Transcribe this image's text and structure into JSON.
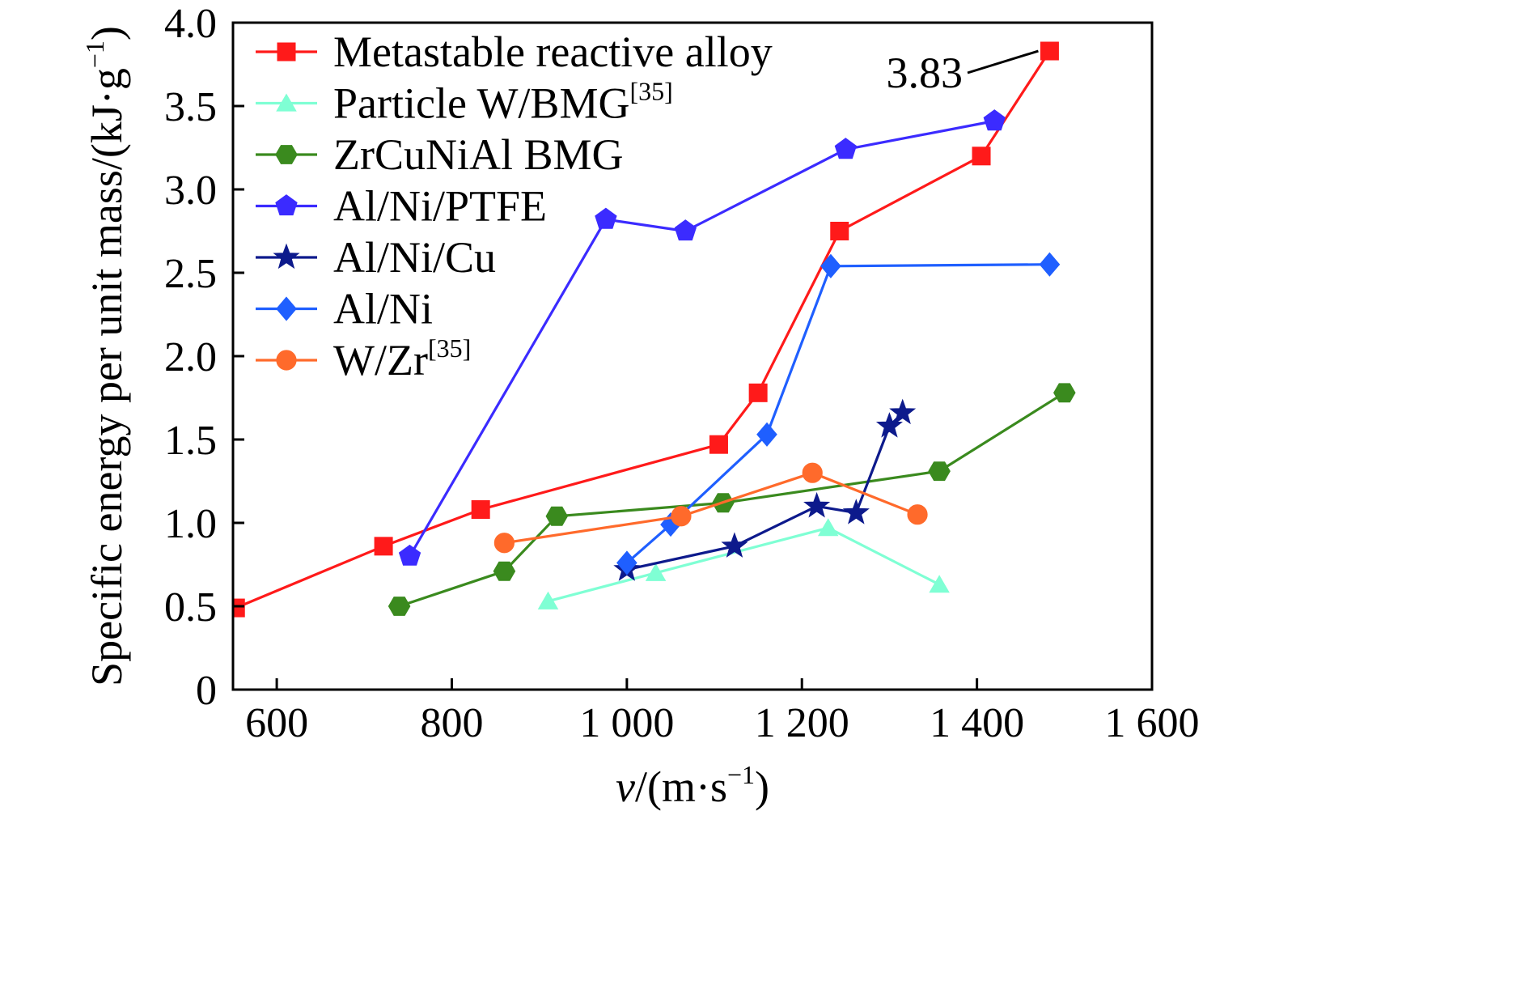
{
  "chart_data": {
    "type": "line",
    "xlabel": "v/(m·s−1)",
    "xlabel_parts": {
      "var": "v",
      "unit_open": "/(m·s",
      "unit_exp": "−1",
      "unit_close": ")"
    },
    "ylabel": "Specific energy per unit mass/(kJ·g−1)",
    "ylabel_parts": {
      "main": "Specific energy per unit mass/(kJ·g",
      "exp": "−1",
      "close": ")"
    },
    "xlim": [
      550,
      1600
    ],
    "ylim": [
      0,
      4.0
    ],
    "x_ticks": [
      {
        "value": 600,
        "label": "600"
      },
      {
        "value": 800,
        "label": "800"
      },
      {
        "value": 1000,
        "label": "1 000"
      },
      {
        "value": 1200,
        "label": "1 200"
      },
      {
        "value": 1400,
        "label": "1 400"
      },
      {
        "value": 1600,
        "label": "1 600"
      }
    ],
    "y_ticks": [
      {
        "value": 0,
        "label": "0"
      },
      {
        "value": 0.5,
        "label": "0.5"
      },
      {
        "value": 1.0,
        "label": "1.0"
      },
      {
        "value": 1.5,
        "label": "1.5"
      },
      {
        "value": 2.0,
        "label": "2.0"
      },
      {
        "value": 2.5,
        "label": "2.5"
      },
      {
        "value": 3.0,
        "label": "3.0"
      },
      {
        "value": 3.5,
        "label": "3.5"
      },
      {
        "value": 4.0,
        "label": "4.0"
      }
    ],
    "grid": false,
    "legend_position": "top-left",
    "annotation": {
      "text": "3.83",
      "x": 1483,
      "y": 3.83
    },
    "series": [
      {
        "name": "Metastable reactive alloy",
        "name_main": "Metastable reactive alloy",
        "name_sup": "",
        "color": "#ff1a1a",
        "marker": "square",
        "x": [
          553,
          722,
          833,
          1105,
          1150,
          1243,
          1405,
          1483
        ],
        "y": [
          0.49,
          0.86,
          1.08,
          1.47,
          1.78,
          2.75,
          3.2,
          3.83
        ]
      },
      {
        "name": "Particle W/BMG[35]",
        "name_main": "Particle W/BMG",
        "name_sup": "[35]",
        "color": "#7fffd4",
        "marker": "triangle",
        "x": [
          910,
          1033,
          1230,
          1357
        ],
        "y": [
          0.53,
          0.7,
          0.97,
          0.63
        ]
      },
      {
        "name": "ZrCuNiAl BMG",
        "name_main": "ZrCuNiAl BMG",
        "name_sup": "",
        "color": "#3a8a1e",
        "marker": "hexagon",
        "x": [
          740,
          860,
          920,
          1110,
          1357,
          1500
        ],
        "y": [
          0.5,
          0.71,
          1.04,
          1.12,
          1.31,
          1.78
        ]
      },
      {
        "name": "Al/Ni/PTFE",
        "name_main": "Al/Ni/PTFE",
        "name_sup": "",
        "color": "#3b2bff",
        "marker": "pentagon",
        "x": [
          752,
          976,
          1067,
          1250,
          1420
        ],
        "y": [
          0.8,
          2.82,
          2.75,
          3.24,
          3.41
        ]
      },
      {
        "name": "Al/Ni/Cu",
        "name_main": "Al/Ni/Cu",
        "name_sup": "",
        "color": "#0d1a8c",
        "marker": "star",
        "x": [
          1000,
          1123,
          1217,
          1262,
          1300,
          1315
        ],
        "y": [
          0.72,
          0.86,
          1.1,
          1.06,
          1.58,
          1.66
        ]
      },
      {
        "name": "Al/Ni",
        "name_main": "Al/Ni",
        "name_sup": "",
        "color": "#1f5fff",
        "marker": "diamond",
        "x": [
          1000,
          1050,
          1160,
          1233,
          1483
        ],
        "y": [
          0.76,
          0.99,
          1.53,
          2.54,
          2.55
        ]
      },
      {
        "name": "W/Zr[35]",
        "name_main": "W/Zr",
        "name_sup": "[35]",
        "color": "#ff6a2b",
        "marker": "circle",
        "x": [
          860,
          1062,
          1212,
          1332
        ],
        "y": [
          0.88,
          1.04,
          1.3,
          1.05
        ]
      }
    ]
  }
}
